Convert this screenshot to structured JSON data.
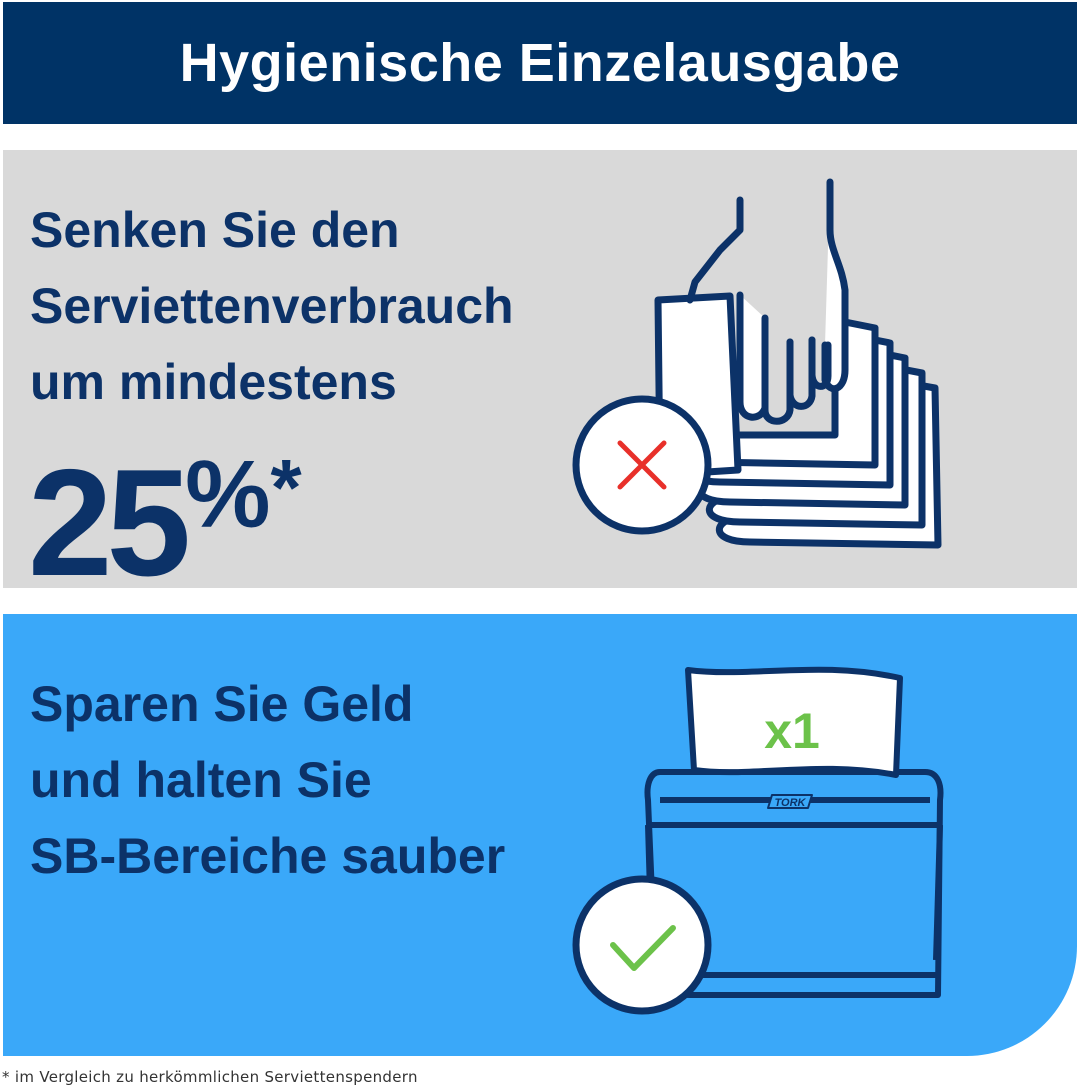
{
  "header": {
    "title": "Hygienische Einzelausgabe"
  },
  "section_reduce": {
    "lines": [
      "Senken Sie den",
      "Serviettenverbrauch",
      "um mindestens"
    ],
    "number": "25",
    "percent": "%",
    "asterisk": "*",
    "icon": "hand-grabbing-napkin-stack-icon",
    "badge_icon": "red-x-icon"
  },
  "section_save": {
    "lines": [
      "Sparen Sie Geld",
      "und halten Sie",
      "SB-Bereiche sauber"
    ],
    "napkin_label": "x1",
    "brand": "TORK",
    "icon": "napkin-dispenser-icon",
    "badge_icon": "green-check-icon"
  },
  "footnote": "* im Vergleich zu herkömmlichen Serviettenspendern",
  "colors": {
    "navy": "#003366",
    "text_dark_blue": "#0c3268",
    "grey_panel": "#d9d9d9",
    "blue_panel": "#3aa8f9",
    "red_x": "#e8302a",
    "green_check": "#6cc24a"
  }
}
